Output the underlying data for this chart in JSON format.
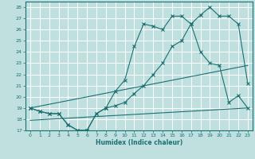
{
  "xlabel": "Humidex (Indice chaleur)",
  "xlim": [
    -0.5,
    23.5
  ],
  "ylim": [
    17,
    28.5
  ],
  "yticks": [
    17,
    18,
    19,
    20,
    21,
    22,
    23,
    24,
    25,
    26,
    27,
    28
  ],
  "xticks": [
    0,
    1,
    2,
    3,
    4,
    5,
    6,
    7,
    8,
    9,
    10,
    11,
    12,
    13,
    14,
    15,
    16,
    17,
    18,
    19,
    20,
    21,
    22,
    23
  ],
  "bg_color": "#c0e0e0",
  "grid_color": "#ffffff",
  "line_color": "#1a7070",
  "line1_x": [
    0,
    1,
    2,
    3,
    4,
    5,
    6,
    7,
    8,
    9,
    10,
    11,
    12,
    13,
    14,
    15,
    16,
    17,
    18,
    19,
    20,
    21,
    22,
    23
  ],
  "line1_y": [
    19,
    18.7,
    18.5,
    18.5,
    17.5,
    17.0,
    17.0,
    18.5,
    19.0,
    20.5,
    21.5,
    24.5,
    26.5,
    26.3,
    26.0,
    27.2,
    27.2,
    26.5,
    24.0,
    23.0,
    22.8,
    19.5,
    20.1,
    19.0
  ],
  "line2_x": [
    0,
    1,
    2,
    3,
    4,
    5,
    6,
    7,
    8,
    9,
    10,
    11,
    12,
    13,
    14,
    15,
    16,
    17,
    18,
    19,
    20,
    21,
    22,
    23
  ],
  "line2_y": [
    19,
    18.7,
    18.5,
    18.5,
    17.5,
    17.0,
    17.0,
    18.5,
    19.0,
    19.2,
    19.5,
    20.3,
    21.0,
    22.0,
    23.0,
    24.5,
    25.0,
    26.5,
    27.3,
    28.0,
    27.2,
    27.2,
    26.5,
    21.2
  ],
  "line3_x": [
    0,
    23
  ],
  "line3_y": [
    19.0,
    22.8
  ],
  "line4_x": [
    0,
    23
  ],
  "line4_y": [
    17.9,
    19.0
  ]
}
